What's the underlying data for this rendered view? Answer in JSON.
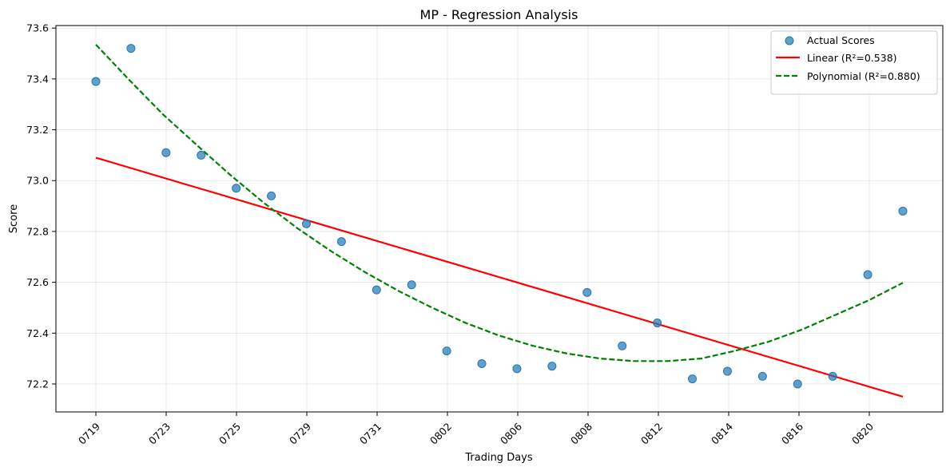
{
  "chart_data": {
    "type": "scatter",
    "title": "MP - Regression Analysis",
    "xlabel": "Trading Days",
    "ylabel": "Score",
    "x_tick_labels": [
      "0719",
      "0723",
      "0725",
      "0729",
      "0731",
      "0802",
      "0806",
      "0808",
      "0812",
      "0814",
      "0816",
      "0820"
    ],
    "y_ticks": [
      72.2,
      72.4,
      72.6,
      72.8,
      73.0,
      73.2,
      73.4,
      73.6
    ],
    "y_tick_labels": [
      "72.2",
      "72.4",
      "72.6",
      "72.8",
      "73.0",
      "73.2",
      "73.4",
      "73.6"
    ],
    "ylim": [
      72.09,
      73.61
    ],
    "grid": true,
    "legend_position": "top-right",
    "series": [
      {
        "name": "Actual Scores",
        "kind": "scatter",
        "color": "#1f77b4",
        "values": [
          73.39,
          73.52,
          73.11,
          73.1,
          72.97,
          72.94,
          72.83,
          72.76,
          72.57,
          72.59,
          72.33,
          72.28,
          72.26,
          72.27,
          72.56,
          72.35,
          72.44,
          72.22,
          72.25,
          72.23,
          72.2,
          72.23,
          72.63,
          72.88
        ]
      },
      {
        "name": "Linear (R²=0.538)",
        "kind": "line",
        "color": "#ff0000",
        "dash": "solid",
        "values": [
          73.09,
          72.15
        ]
      },
      {
        "name": "Polynomial (R²=0.880)",
        "kind": "line",
        "color": "#008000",
        "dash": "dashed",
        "values": [
          73.535,
          73.395,
          73.26,
          73.14,
          73.022,
          72.912,
          72.812,
          72.722,
          72.64,
          72.566,
          72.5,
          72.44,
          72.39,
          72.35,
          72.32,
          72.3,
          72.29,
          72.29,
          72.3,
          72.33,
          72.366,
          72.414,
          72.472,
          72.53,
          72.598
        ]
      }
    ]
  }
}
